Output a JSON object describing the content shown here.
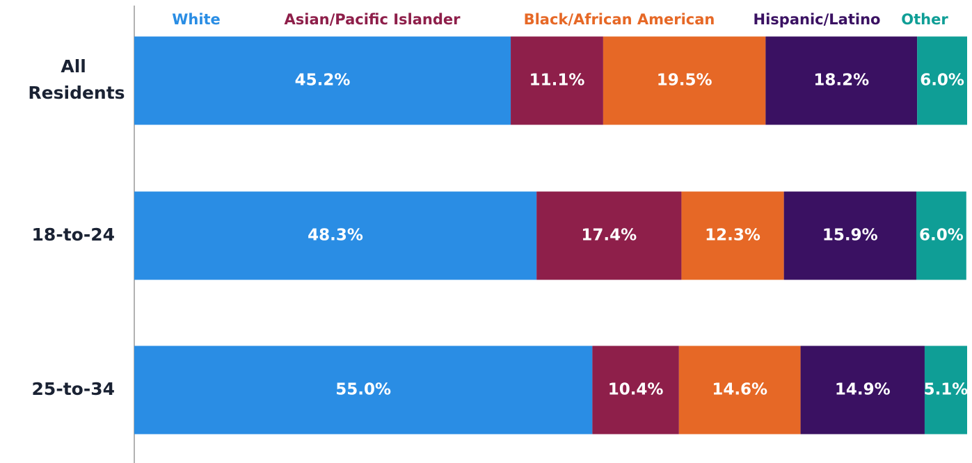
{
  "chart_data": {
    "type": "stacked-barh",
    "categories": [
      "All Residents",
      "18-to-24",
      "25-to-34"
    ],
    "xlim": [
      0,
      100
    ],
    "legend": "top",
    "series": [
      {
        "name": "White",
        "color": "#2a8de4",
        "values": [
          45.2,
          48.3,
          55.0
        ],
        "value_labels": [
          "45.2%",
          "48.3%",
          "55.0%"
        ]
      },
      {
        "name": "Asian/Pacific Islander",
        "color": "#8e1f4a",
        "values": [
          11.1,
          17.4,
          10.4
        ],
        "value_labels": [
          "11.1%",
          "17.4%",
          "10.4%"
        ]
      },
      {
        "name": "Black/African American",
        "color": "#e66826",
        "values": [
          19.5,
          12.3,
          14.6
        ],
        "value_labels": [
          "19.5%",
          "12.3%",
          "14.6%"
        ]
      },
      {
        "name": "Hispanic/Latino",
        "color": "#3a1162",
        "values": [
          18.2,
          15.9,
          14.9
        ],
        "value_labels": [
          "18.2%",
          "15.9%",
          "14.9%"
        ]
      },
      {
        "name": "Other",
        "color": "#0f9e96",
        "values": [
          6.0,
          6.0,
          5.1
        ],
        "value_labels": [
          "6.0%",
          "6.0%",
          "5.1%"
        ]
      }
    ]
  }
}
